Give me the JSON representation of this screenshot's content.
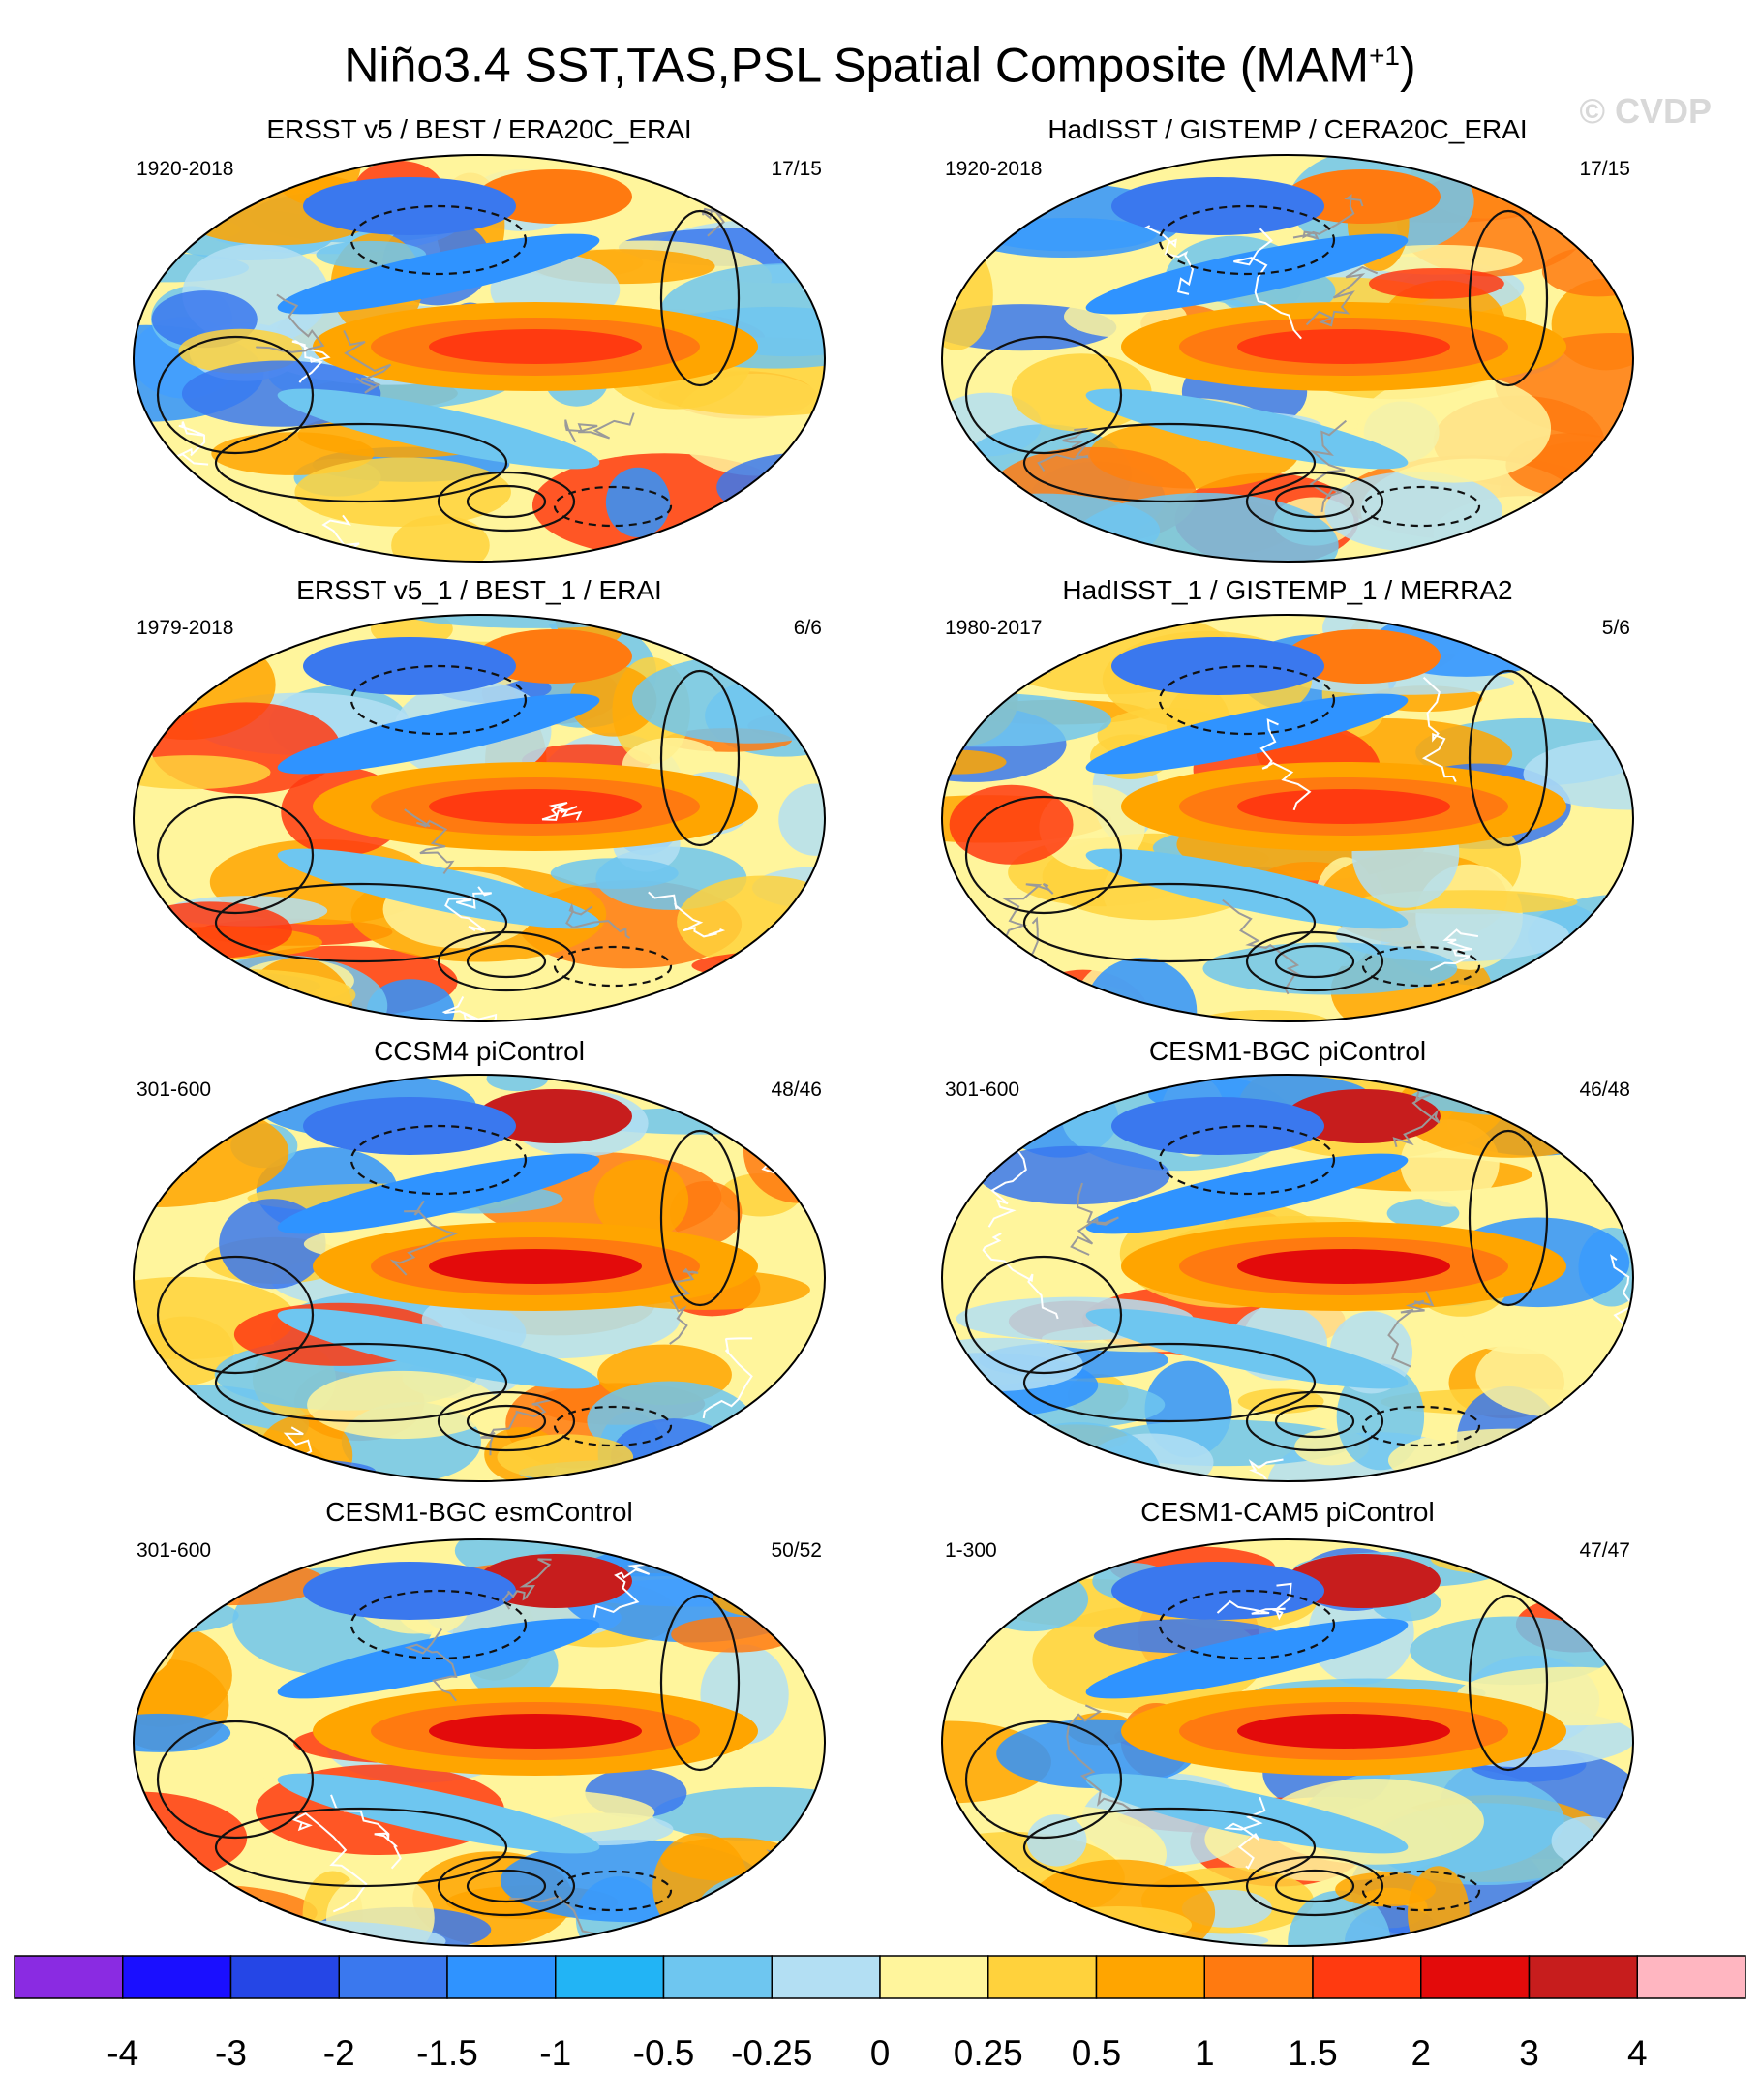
{
  "figure": {
    "title": "Niño3.4 SST,TAS,PSL Spatial Composite (MAM",
    "title_sup": "+1",
    "title_end": ")",
    "watermark": "© CVDP"
  },
  "panels": [
    {
      "title": "ERSST v5 / BEST / ERA20C_ERAI",
      "period": "1920-2018",
      "count": "17/15"
    },
    {
      "title": "HadISST / GISTEMP / CERA20C_ERAI",
      "period": "1920-2018",
      "count": "17/15"
    },
    {
      "title": "ERSST v5_1 / BEST_1 / ERAI",
      "period": "1979-2018",
      "count": "6/6"
    },
    {
      "title": "HadISST_1 / GISTEMP_1 / MERRA2",
      "period": "1980-2017",
      "count": "5/6"
    },
    {
      "title": "CCSM4 piControl",
      "period": "301-600",
      "count": "48/46"
    },
    {
      "title": "CESM1-BGC piControl",
      "period": "301-600",
      "count": "46/48"
    },
    {
      "title": "CESM1-BGC esmControl",
      "period": "301-600",
      "count": "50/52"
    },
    {
      "title": "CESM1-CAM5 piControl",
      "period": "1-300",
      "count": "47/47"
    }
  ],
  "colorbar": {
    "labels": [
      "-4",
      "-3",
      "-2",
      "-1.5",
      "-1",
      "-0.5",
      "-0.25",
      "0",
      "0.25",
      "0.5",
      "1",
      "1.5",
      "2",
      "3",
      "4"
    ],
    "colors": [
      "#8a2be2",
      "#1a0fff",
      "#2546e6",
      "#3a78ee",
      "#2f93ff",
      "#22b4f5",
      "#6ec6f0",
      "#b3dff3",
      "#fff59c",
      "#ffd23c",
      "#ffa500",
      "#ff7a10",
      "#ff3a10",
      "#e30b0b",
      "#c71d1d",
      "#ffb6c1"
    ]
  }
}
